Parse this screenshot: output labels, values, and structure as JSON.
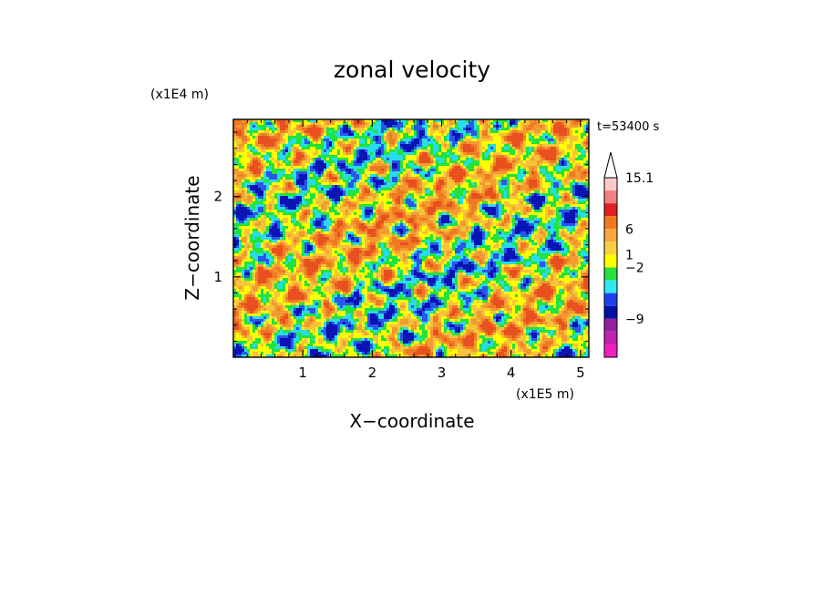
{
  "chart_data": {
    "type": "heatmap",
    "title": "zonal velocity",
    "xlabel": "X−coordinate",
    "ylabel": "Z−coordinate",
    "x_unit": "(x1E5 m)",
    "y_unit": "(x1E4 m)",
    "time_label": "t=53400 s",
    "xlim": [
      0.0,
      5.12
    ],
    "ylim": [
      0.0,
      2.96
    ],
    "x_ticks": [
      "1",
      "2",
      "3",
      "4",
      "5"
    ],
    "y_ticks": [
      "1",
      "2"
    ],
    "colorbar": {
      "labels": [
        "15.1",
        "6",
        "1",
        "−2",
        "−9"
      ],
      "bins": [
        {
          "color": "#ffc8c8"
        },
        {
          "color": "#f28080"
        },
        {
          "color": "#e02020"
        },
        {
          "color": "#f07a1a"
        },
        {
          "color": "#f8a640"
        },
        {
          "color": "#f6d040"
        },
        {
          "color": "#ffff00"
        },
        {
          "color": "#28e040"
        },
        {
          "color": "#30e8f0"
        },
        {
          "color": "#2040f0"
        },
        {
          "color": "#0010a0"
        },
        {
          "color": "#9020a0"
        },
        {
          "color": "#c020b0"
        },
        {
          "color": "#f020c0"
        }
      ],
      "extend": "max"
    },
    "field_palette": [
      "#0a14b4",
      "#2a56ea",
      "#28dcea",
      "#22e23c",
      "#ffff00",
      "#f6c43a",
      "#f39a30",
      "#f07a22",
      "#e85020"
    ]
  }
}
